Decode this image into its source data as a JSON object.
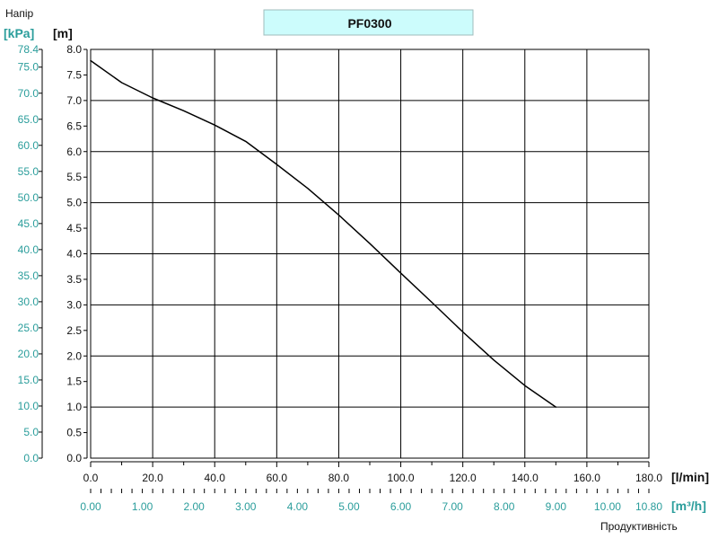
{
  "chart_data": {
    "type": "line",
    "title": "PF0300",
    "y_axis_title": "Напір",
    "x_axis_title": "Продуктивність",
    "y_left_unit": "[kPa]",
    "y_right_unit": "[m]",
    "x_top_unit": "[l/min]",
    "x_bottom_unit": "[m³/h]",
    "y_m_range": [
      0,
      8
    ],
    "y_m_ticks": [
      "0.0",
      "0.5",
      "1.0",
      "1.5",
      "2.0",
      "2.5",
      "3.0",
      "3.5",
      "4.0",
      "4.5",
      "5.0",
      "5.5",
      "6.0",
      "6.5",
      "7.0",
      "7.5",
      "8.0"
    ],
    "y_kpa_ticks": [
      "0.0",
      "5.0",
      "10.0",
      "15.0",
      "20.0",
      "25.0",
      "30.0",
      "35.0",
      "40.0",
      "45.0",
      "50.0",
      "55.0",
      "60.0",
      "65.0",
      "70.0",
      "75.0",
      "78.4"
    ],
    "x_lmin_range": [
      0,
      180
    ],
    "x_lmin_ticks": [
      "0.0",
      "20.0",
      "40.0",
      "60.0",
      "80.0",
      "100.0",
      "120.0",
      "140.0",
      "160.0",
      "180.0"
    ],
    "x_m3h_ticks": [
      "0.00",
      "1.00",
      "2.00",
      "3.00",
      "4.00",
      "5.00",
      "6.00",
      "7.00",
      "8.00",
      "9.00",
      "10.00",
      "10.80"
    ],
    "grid": true,
    "series": [
      {
        "x": [
          0,
          10,
          20,
          30,
          40,
          50,
          60,
          70,
          80,
          90,
          100,
          110,
          120,
          130,
          140,
          150
        ],
        "y": [
          7.78,
          7.35,
          7.05,
          6.8,
          6.52,
          6.2,
          5.75,
          5.28,
          4.76,
          4.2,
          3.62,
          3.05,
          2.47,
          1.92,
          1.42,
          1.0
        ]
      }
    ],
    "colors": {
      "curve": "#000000",
      "grid": "#000000",
      "title_bg": "#ccfcfc",
      "kpa_text": "#2a9d9b"
    }
  }
}
